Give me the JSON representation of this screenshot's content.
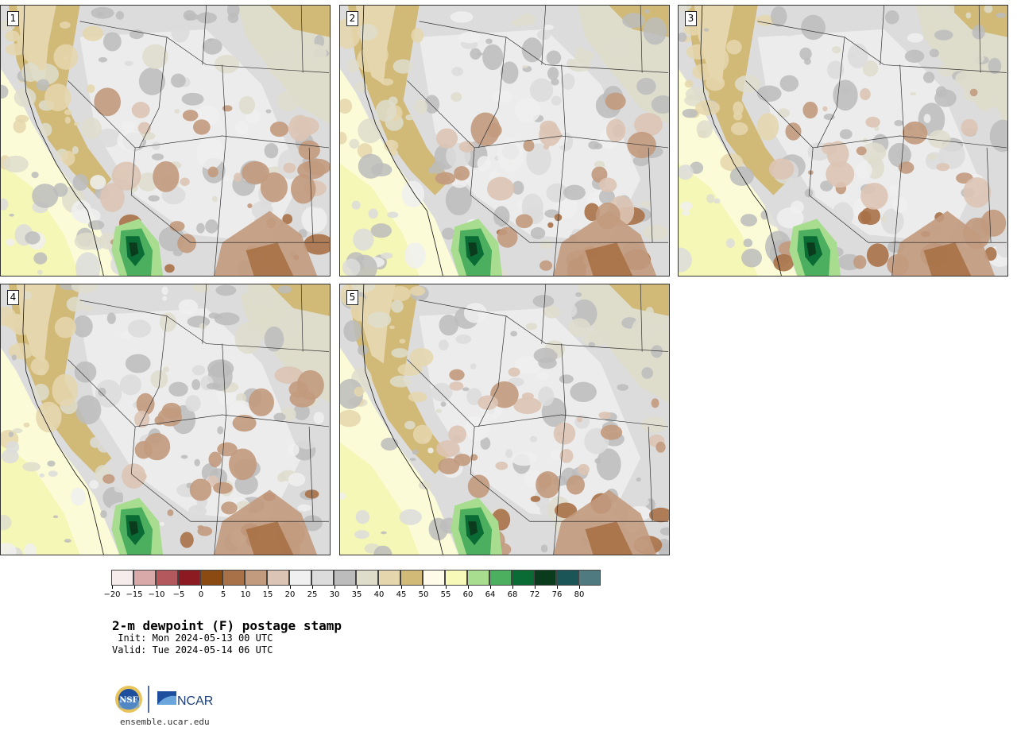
{
  "panels": [
    {
      "label": "1"
    },
    {
      "label": "2"
    },
    {
      "label": "3"
    },
    {
      "label": "4"
    },
    {
      "label": "5"
    }
  ],
  "colorbar": {
    "ticks": [
      "−20",
      "−15",
      "−10",
      "−5",
      "0",
      "5",
      "10",
      "15",
      "20",
      "25",
      "30",
      "35",
      "40",
      "45",
      "50",
      "55",
      "60",
      "64",
      "68",
      "72",
      "76",
      "80"
    ],
    "colors": [
      "#f6ecec",
      "#d9a8a8",
      "#b3595e",
      "#8b1a23",
      "#8a4a12",
      "#a97147",
      "#c29a7e",
      "#dcc4b4",
      "#f0f0f0",
      "#dcdcdc",
      "#bcbcbc",
      "#deddcc",
      "#e5d6ad",
      "#d1b978",
      "#fefbe8",
      "#f7f9b9",
      "#a8dc8f",
      "#4caf5f",
      "#0b6b34",
      "#0a3b1d",
      "#1b5558",
      "#4f7a7f"
    ]
  },
  "title": "2-m dewpoint (F) postage stamp",
  "init": " Init: Mon 2024-05-13 00 UTC",
  "valid": "Valid: Tue 2024-05-14 06 UTC",
  "logos": {
    "nsf": "NSF",
    "ncar": "NCAR"
  },
  "site": "ensemble.ucar.edu"
}
